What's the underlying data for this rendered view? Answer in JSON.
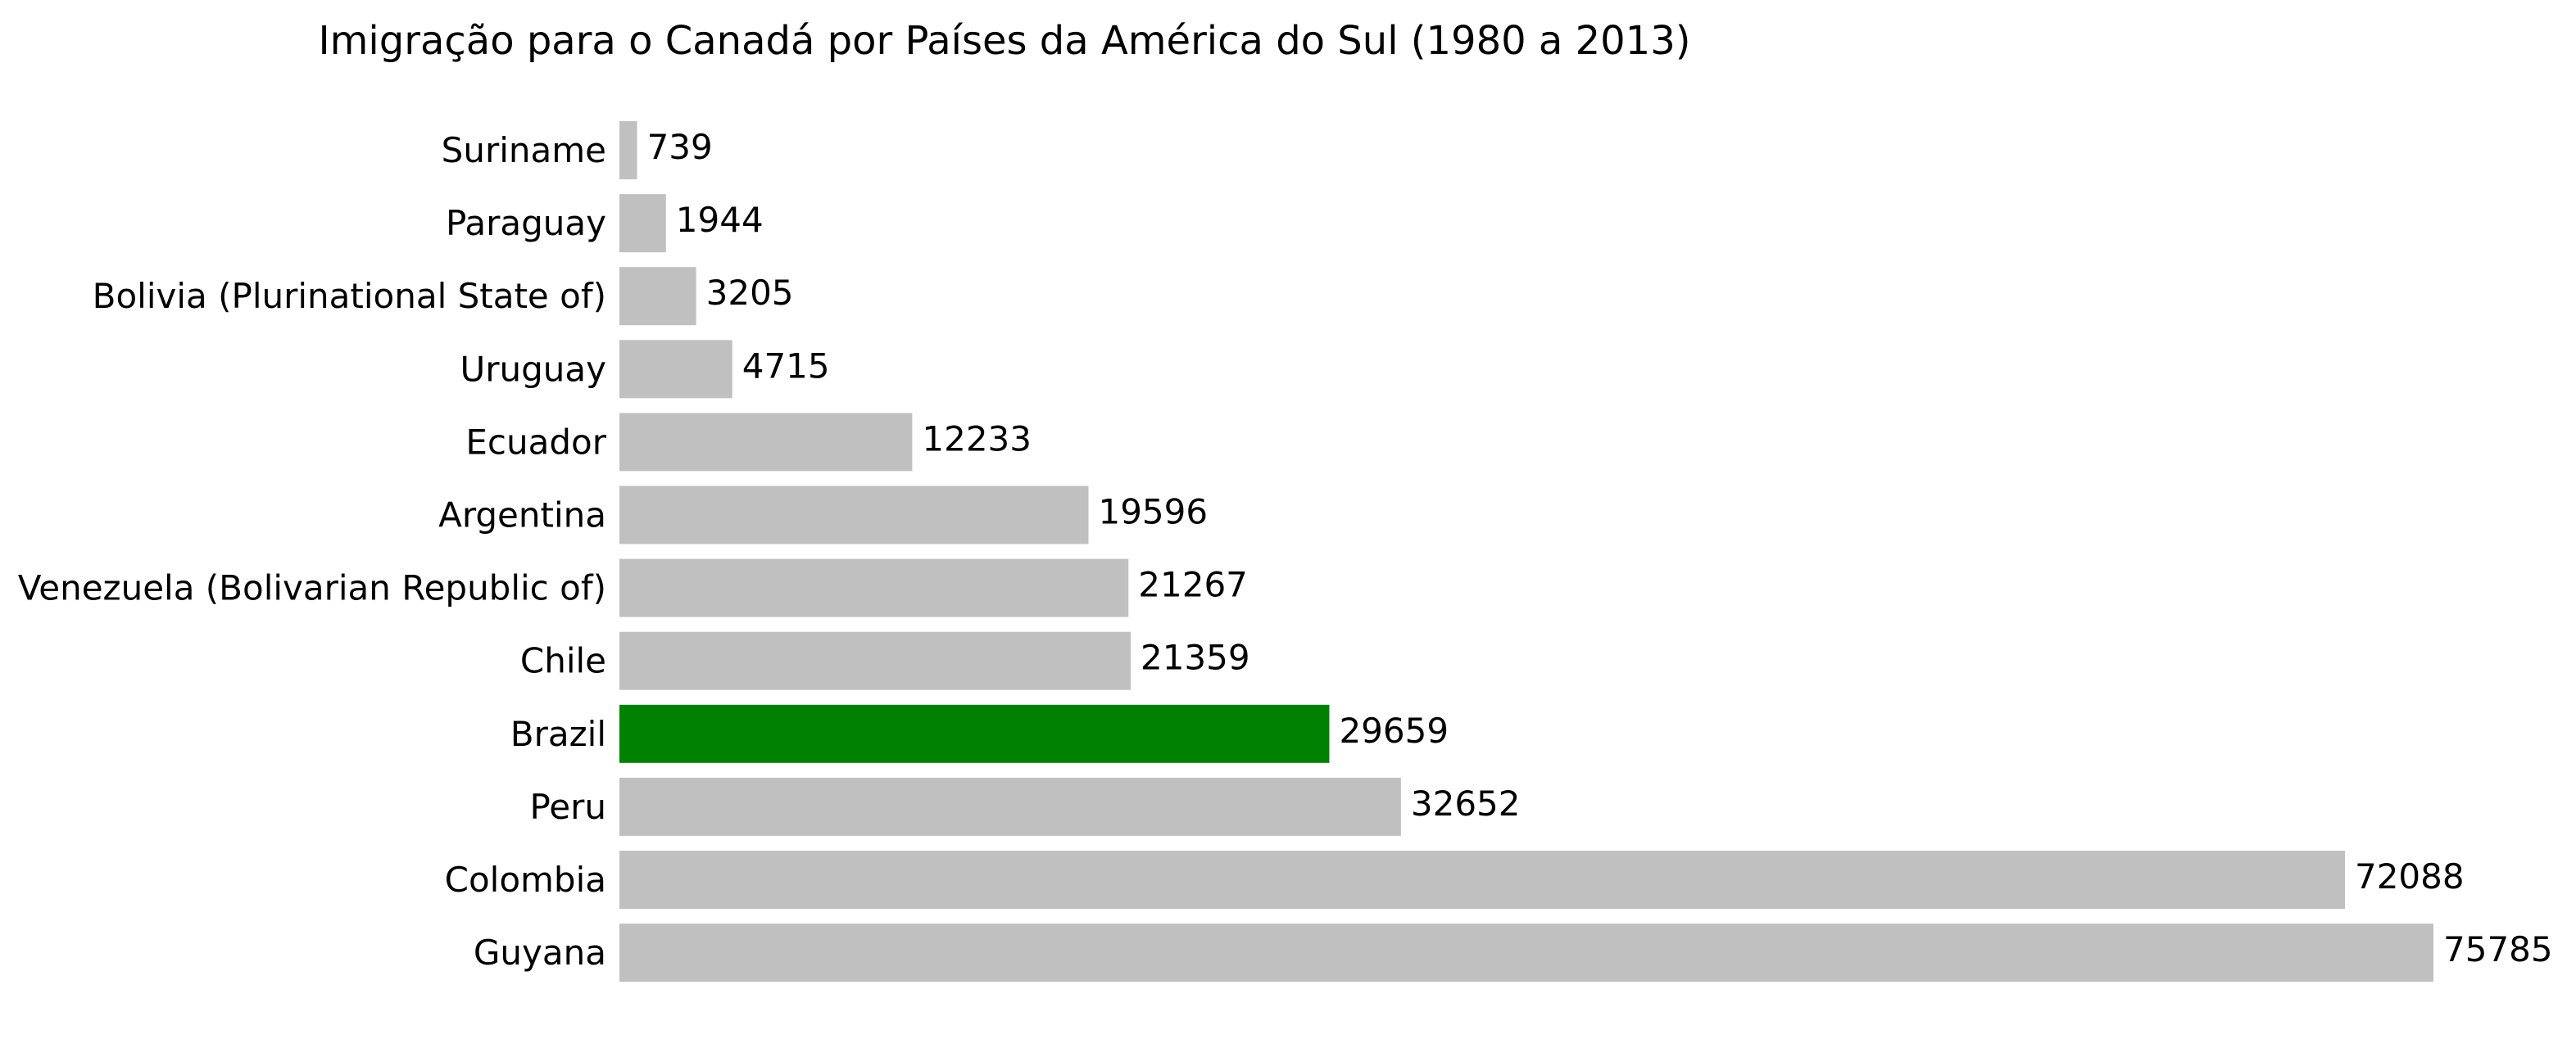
{
  "chart_data": {
    "type": "bar",
    "orientation": "horizontal",
    "title": "Imigração para o Canadá por Países da América do Sul (1980 a 2013)",
    "xlabel": "",
    "ylabel": "",
    "categories": [
      "Suriname",
      "Paraguay",
      "Bolivia (Plurinational State of)",
      "Uruguay",
      "Ecuador",
      "Argentina",
      "Venezuela (Bolivarian Republic of)",
      "Chile",
      "Brazil",
      "Peru",
      "Colombia",
      "Guyana"
    ],
    "values": [
      739,
      1944,
      3205,
      4715,
      12233,
      19596,
      21267,
      21359,
      29659,
      32652,
      72088,
      75785
    ],
    "value_labels": [
      "739",
      "1944",
      "3205",
      "4715",
      "12233",
      "19596",
      "21267",
      "21359",
      "29659",
      "32652",
      "72088",
      "75785"
    ],
    "xlim": [
      0,
      75785
    ],
    "bar_color": "#c0c0c0",
    "highlight_color": "#008000",
    "highlight_category": "Brazil",
    "grid": false,
    "axes_visible": false,
    "legend": "none",
    "data_labels": "end-of-bar"
  }
}
